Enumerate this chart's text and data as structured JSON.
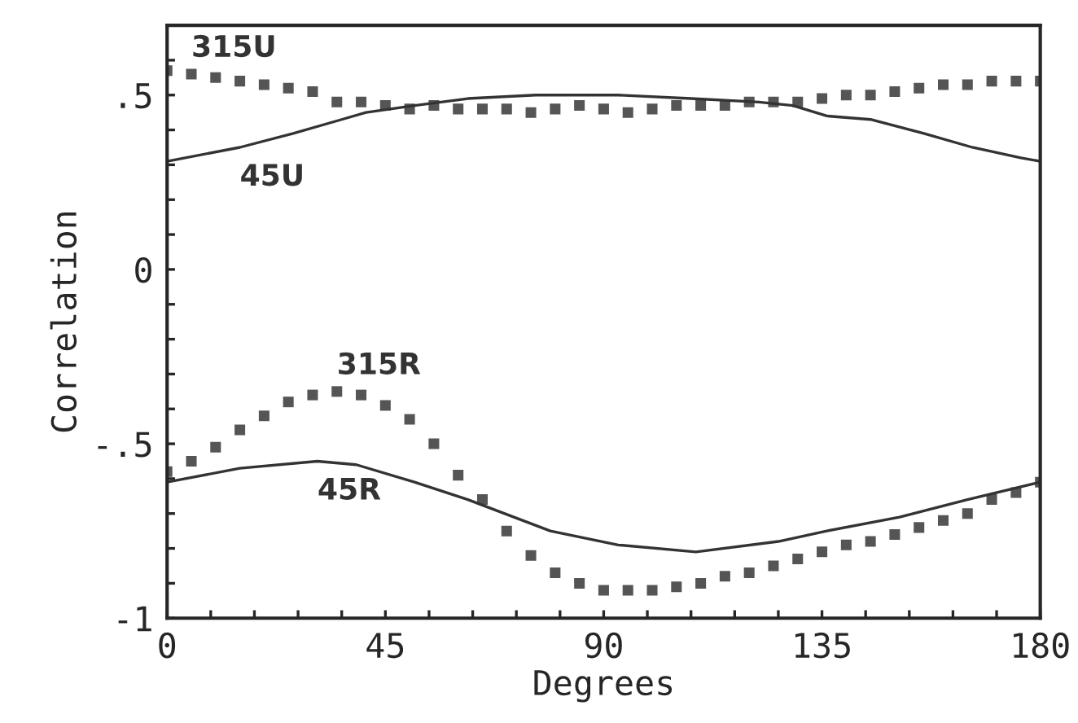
{
  "chart_data": {
    "type": "line",
    "xlabel": "Degrees",
    "ylabel": "Correlation",
    "xlim": [
      0,
      180
    ],
    "ylim": [
      -1,
      0.7
    ],
    "xticks": [
      0,
      {
        "value": 9,
        "label": null
      },
      {
        "value": 18,
        "label": null
      },
      {
        "value": 27,
        "label": null
      },
      {
        "value": 36,
        "label": null
      },
      45,
      {
        "value": 54,
        "label": null
      },
      {
        "value": 63,
        "label": null
      },
      {
        "value": 72,
        "label": null
      },
      {
        "value": 81,
        "label": null
      },
      90,
      {
        "value": 99,
        "label": null
      },
      {
        "value": 108,
        "label": null
      },
      {
        "value": 117,
        "label": null
      },
      {
        "value": 126,
        "label": null
      },
      135,
      {
        "value": 144,
        "label": null
      },
      {
        "value": 153,
        "label": null
      },
      {
        "value": 162,
        "label": null
      },
      {
        "value": 171,
        "label": null
      },
      180
    ],
    "yticks": [
      -1,
      {
        "value": -0.9,
        "label": null
      },
      {
        "value": -0.8,
        "label": null
      },
      {
        "value": -0.7,
        "label": null
      },
      {
        "value": -0.6,
        "label": null
      },
      {
        "value": -0.5,
        "label": "-.5"
      },
      {
        "value": -0.4,
        "label": null
      },
      {
        "value": -0.3,
        "label": null
      },
      {
        "value": -0.2,
        "label": null
      },
      {
        "value": -0.1,
        "label": null
      },
      0,
      {
        "value": 0.1,
        "label": null
      },
      {
        "value": 0.2,
        "label": null
      },
      {
        "value": 0.3,
        "label": null
      },
      {
        "value": 0.4,
        "label": null
      },
      {
        "value": 0.5,
        "label": ".5"
      },
      {
        "value": 0.6,
        "label": null
      }
    ],
    "grid": false,
    "legend": false,
    "series": [
      {
        "type": "scatter",
        "marker": "square",
        "color": "#555555",
        "x": [
          0,
          5,
          10,
          15,
          20,
          25,
          30,
          35,
          40,
          45,
          50,
          55,
          60,
          65,
          70,
          75,
          80,
          85,
          90,
          95,
          100,
          105,
          110,
          115,
          120,
          125,
          130,
          135,
          140,
          145,
          150,
          155,
          160,
          165,
          170,
          175,
          180
        ],
        "values": [
          0.57,
          0.56,
          0.55,
          0.54,
          0.53,
          0.52,
          0.51,
          0.48,
          0.48,
          0.47,
          0.46,
          0.47,
          0.46,
          0.46,
          0.46,
          0.45,
          0.46,
          0.47,
          0.46,
          0.45,
          0.46,
          0.47,
          0.47,
          0.47,
          0.48,
          0.48,
          0.48,
          0.49,
          0.5,
          0.5,
          0.51,
          0.52,
          0.53,
          0.53,
          0.54,
          0.54,
          0.54
        ]
      },
      {
        "line_style": "solid",
        "color": "#333333",
        "x": [
          0,
          15,
          26,
          36,
          41,
          51,
          62,
          76,
          93,
          108,
          122,
          129,
          136,
          145,
          156,
          166,
          176,
          180
        ],
        "values": [
          0.31,
          0.35,
          0.39,
          0.43,
          0.45,
          0.47,
          0.49,
          0.5,
          0.5,
          0.49,
          0.48,
          0.47,
          0.44,
          0.43,
          0.39,
          0.35,
          0.32,
          0.31
        ]
      },
      {
        "type": "scatter",
        "marker": "square",
        "color": "#555555",
        "x": [
          0,
          5,
          10,
          15,
          20,
          25,
          30,
          35,
          40,
          45,
          50,
          55,
          60,
          65,
          70,
          75,
          80,
          85,
          90,
          95,
          100,
          105,
          110,
          115,
          120,
          125,
          130,
          135,
          140,
          145,
          150,
          155,
          160,
          165,
          170,
          175,
          180
        ],
        "values": [
          -0.58,
          -0.55,
          -0.51,
          -0.46,
          -0.42,
          -0.38,
          -0.36,
          -0.35,
          -0.36,
          -0.39,
          -0.43,
          -0.5,
          -0.59,
          -0.66,
          -0.75,
          -0.82,
          -0.87,
          -0.9,
          -0.92,
          -0.92,
          -0.92,
          -0.91,
          -0.9,
          -0.88,
          -0.87,
          -0.85,
          -0.83,
          -0.81,
          -0.79,
          -0.78,
          -0.76,
          -0.74,
          -0.72,
          -0.7,
          -0.66,
          -0.64,
          -0.61
        ]
      },
      {
        "line_style": "solid",
        "color": "#333333",
        "x": [
          0,
          15,
          31,
          39,
          51,
          62,
          79,
          93,
          109,
          126,
          136,
          151,
          165,
          180
        ],
        "values": [
          -0.61,
          -0.57,
          -0.55,
          -0.56,
          -0.61,
          -0.66,
          -0.75,
          -0.79,
          -0.81,
          -0.78,
          -0.75,
          -0.71,
          -0.66,
          -0.61
        ]
      }
    ],
    "annotations": [
      {
        "text": "315U",
        "x": 5,
        "y": 0.56
      },
      {
        "text": "45U",
        "x": 15,
        "y": 0.35
      },
      {
        "text": "315R",
        "x": 35,
        "y": -0.35
      },
      {
        "text": "45R",
        "x": 31,
        "y": -0.55
      }
    ]
  }
}
